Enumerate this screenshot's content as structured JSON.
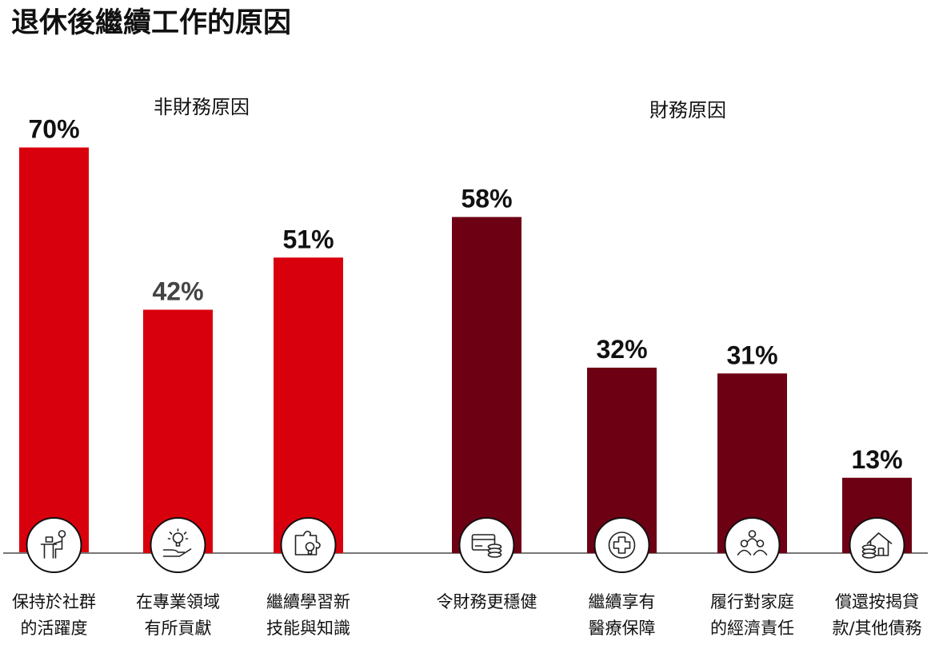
{
  "title": "退休後繼續工作的原因",
  "colors": {
    "non_financial": "#D9000D",
    "financial": "#6E0014",
    "axis": "#777777",
    "text": "#111111"
  },
  "chart_data": {
    "type": "bar",
    "title": "退休後繼續工作的原因",
    "xlabel": "",
    "ylabel": "",
    "ylim": [
      0,
      100
    ],
    "unit": "%",
    "grid": false,
    "legend": "none",
    "groups": [
      {
        "name": "非財務原因",
        "color": "#D9000D"
      },
      {
        "name": "財務原因",
        "color": "#6E0014"
      }
    ],
    "categories": [
      "保持於社群的活躍度",
      "在專業領域有所貢獻",
      "繼續學習新技能與知識",
      "令財務更穩健",
      "繼續享有醫療保障",
      "履行對家庭的經濟責任",
      "償還按揭貸款/其他債務"
    ],
    "category_groups": [
      0,
      0,
      0,
      1,
      1,
      1,
      1
    ],
    "values": [
      70,
      42,
      51,
      58,
      32,
      31,
      13
    ],
    "value_labels": [
      "70%",
      "42%",
      "51%",
      "58%",
      "32%",
      "31%",
      "13%"
    ],
    "icons": [
      "person-at-desk-icon",
      "hand-lightbulb-icon",
      "puzzle-lightbulb-icon",
      "card-coins-icon",
      "medical-cross-icon",
      "family-group-icon",
      "house-coins-icon"
    ],
    "label_lines": [
      [
        "保持於社群",
        "的活躍度"
      ],
      [
        "在專業領域",
        "有所貢獻"
      ],
      [
        "繼續學習新",
        "技能與知識"
      ],
      [
        "令財務更穩健"
      ],
      [
        "繼續享有",
        "醫療保障"
      ],
      [
        "履行對家庭",
        "的經濟責任"
      ],
      [
        "償還按揭貸",
        "款/其他債務"
      ]
    ]
  }
}
